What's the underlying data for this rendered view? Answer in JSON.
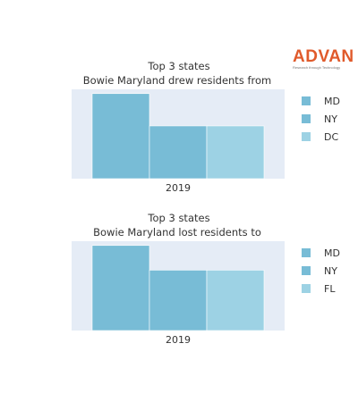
{
  "logo": {
    "text": "ADVAN",
    "tagline": "Research through Technology",
    "color": "#e05a2b"
  },
  "plot_background": "#e5ecf6",
  "chart_data": [
    {
      "type": "bar",
      "title": "Top 3 states",
      "subtitle": "Bowie Maryland drew residents from",
      "categories": [
        "2019"
      ],
      "series": [
        {
          "name": "MD",
          "values": [
            1.0
          ],
          "color": "#78bcd6"
        },
        {
          "name": "NY",
          "values": [
            0.62
          ],
          "color": "#78bcd6"
        },
        {
          "name": "DC",
          "values": [
            0.62
          ],
          "color": "#9dd2e4"
        }
      ],
      "ylim": [
        0,
        1.05
      ],
      "yaxis_visible": false,
      "grid": false,
      "legend": "right"
    },
    {
      "type": "bar",
      "title": "Top 3 states",
      "subtitle": "Bowie Maryland lost residents to",
      "categories": [
        "2019"
      ],
      "series": [
        {
          "name": "MD",
          "values": [
            1.0
          ],
          "color": "#78bcd6"
        },
        {
          "name": "NY",
          "values": [
            0.71
          ],
          "color": "#78bcd6"
        },
        {
          "name": "FL",
          "values": [
            0.71
          ],
          "color": "#9dd2e4"
        }
      ],
      "ylim": [
        0,
        1.05
      ],
      "yaxis_visible": false,
      "grid": false,
      "legend": "right"
    }
  ]
}
